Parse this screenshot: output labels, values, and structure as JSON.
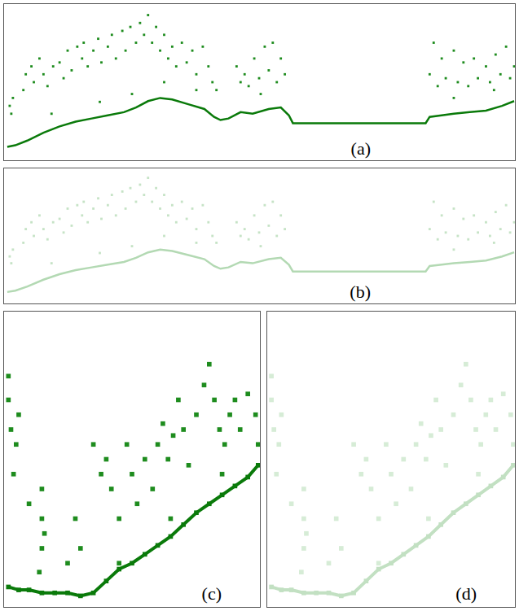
{
  "chart_data": [
    {
      "type": "scatter",
      "title": "(a)",
      "xlim": [
        0,
        637
      ],
      "ylim": [
        0,
        200
      ],
      "tick_labels": false,
      "grid": false,
      "series": [
        {
          "color": "#1e8c1e",
          "marker": "square",
          "line_style": "none",
          "x": [
            8,
            10,
            12,
            25,
            28,
            35,
            38,
            45,
            50,
            55,
            62,
            70,
            75,
            80,
            85,
            92,
            98,
            100,
            105,
            112,
            118,
            122,
            130,
            135,
            140,
            148,
            152,
            158,
            165,
            170,
            175,
            180,
            185,
            190,
            195,
            200,
            205,
            210,
            215,
            222,
            228,
            235,
            240,
            248,
            255,
            260,
            265,
            290,
            295,
            300,
            305,
            312,
            318,
            325,
            330,
            335,
            340,
            345,
            350,
            530,
            535,
            540,
            545,
            550,
            560,
            565,
            572,
            578,
            585,
            590,
            600,
            605,
            612,
            618,
            625,
            630,
            635,
            60,
            120,
            160,
            200,
            240,
            320,
            560,
            610
          ],
          "values": [
            70,
            60,
            80,
            90,
            110,
            120,
            100,
            130,
            110,
            95,
            120,
            125,
            105,
            140,
            115,
            145,
            130,
            150,
            120,
            140,
            155,
            125,
            145,
            160,
            130,
            165,
            140,
            170,
            150,
            175,
            160,
            185,
            150,
            170,
            140,
            160,
            130,
            145,
            120,
            150,
            125,
            140,
            110,
            145,
            120,
            100,
            90,
            120,
            100,
            110,
            95,
            130,
            105,
            145,
            115,
            150,
            100,
            130,
            110,
            110,
            150,
            95,
            130,
            105,
            140,
            100,
            125,
            95,
            130,
            105,
            120,
            100,
            135,
            110,
            145,
            105,
            120,
            60,
            75,
            85,
            100,
            90,
            85,
            80,
            90
          ]
        },
        {
          "color": "#0a7a0a",
          "marker": "none",
          "line_style": "solid",
          "x": [
            5,
            15,
            30,
            50,
            70,
            90,
            110,
            130,
            150,
            165,
            180,
            195,
            210,
            230,
            250,
            262,
            270,
            280,
            295,
            310,
            330,
            345,
            355,
            360,
            400,
            450,
            500,
            525,
            530,
            545,
            560,
            580,
            600,
            620,
            635
          ],
          "values": [
            18,
            20,
            26,
            36,
            44,
            50,
            54,
            58,
            62,
            68,
            76,
            80,
            78,
            72,
            66,
            56,
            52,
            54,
            62,
            60,
            66,
            68,
            58,
            48,
            48,
            48,
            48,
            48,
            56,
            58,
            60,
            62,
            64,
            70,
            76
          ]
        }
      ]
    },
    {
      "type": "scatter",
      "title": "(b)",
      "xlim": [
        0,
        637
      ],
      "ylim": [
        0,
        200
      ],
      "tick_labels": false,
      "grid": false,
      "series": [
        {
          "color": "#c6e3c6",
          "marker": "square",
          "line_style": "none",
          "x": [
            8,
            10,
            12,
            25,
            28,
            35,
            38,
            45,
            50,
            55,
            62,
            70,
            75,
            80,
            85,
            92,
            98,
            100,
            105,
            112,
            118,
            122,
            130,
            135,
            140,
            148,
            152,
            158,
            165,
            170,
            175,
            180,
            185,
            190,
            195,
            200,
            205,
            210,
            215,
            222,
            228,
            235,
            240,
            248,
            255,
            260,
            265,
            290,
            295,
            300,
            305,
            312,
            318,
            325,
            330,
            335,
            340,
            345,
            350,
            530,
            535,
            540,
            545,
            550,
            560,
            565,
            572,
            578,
            585,
            590,
            600,
            605,
            612,
            618,
            625,
            630,
            635,
            60,
            120,
            160,
            200,
            240,
            320,
            560,
            610
          ],
          "values": [
            70,
            60,
            80,
            90,
            110,
            120,
            100,
            130,
            110,
            95,
            120,
            125,
            105,
            140,
            115,
            145,
            130,
            150,
            120,
            140,
            155,
            125,
            145,
            160,
            130,
            165,
            140,
            170,
            150,
            175,
            160,
            185,
            150,
            170,
            140,
            160,
            130,
            145,
            120,
            150,
            125,
            140,
            110,
            145,
            120,
            100,
            90,
            120,
            100,
            110,
            95,
            130,
            105,
            145,
            115,
            150,
            100,
            130,
            110,
            110,
            150,
            95,
            130,
            105,
            140,
            100,
            125,
            95,
            130,
            105,
            120,
            100,
            135,
            110,
            145,
            105,
            120,
            60,
            75,
            85,
            100,
            90,
            85,
            80,
            90
          ]
        },
        {
          "color": "#b3d9b3",
          "marker": "none",
          "line_style": "solid",
          "x": [
            5,
            15,
            30,
            50,
            70,
            90,
            110,
            130,
            150,
            165,
            180,
            195,
            210,
            230,
            250,
            262,
            270,
            280,
            295,
            310,
            330,
            345,
            355,
            360,
            400,
            450,
            500,
            525,
            530,
            545,
            560,
            580,
            600,
            620,
            635
          ],
          "values": [
            18,
            20,
            26,
            36,
            44,
            50,
            54,
            58,
            62,
            68,
            76,
            80,
            78,
            72,
            66,
            56,
            52,
            54,
            62,
            60,
            66,
            68,
            58,
            48,
            48,
            48,
            48,
            48,
            56,
            58,
            60,
            62,
            64,
            70,
            76
          ]
        }
      ]
    },
    {
      "type": "scatter",
      "title": "(c)",
      "xlim": [
        0,
        100
      ],
      "ylim": [
        0,
        100
      ],
      "tick_labels": false,
      "grid": false,
      "series": [
        {
          "color": "#1e8c1e",
          "marker": "square",
          "line_style": "none",
          "x": [
            2,
            2,
            3,
            5,
            4,
            6,
            10,
            15,
            15,
            15,
            16,
            14,
            28,
            30,
            35,
            38,
            40,
            42,
            45,
            48,
            50,
            52,
            55,
            58,
            60,
            62,
            64,
            66,
            68,
            70,
            72,
            75,
            78,
            80,
            82,
            84,
            86,
            88,
            90,
            92,
            95,
            98,
            99,
            25,
            45,
            65,
            85
          ],
          "values": [
            78,
            70,
            60,
            55,
            45,
            65,
            35,
            40,
            30,
            20,
            25,
            12,
            30,
            20,
            55,
            45,
            50,
            40,
            30,
            55,
            45,
            35,
            50,
            40,
            55,
            62,
            50,
            58,
            70,
            60,
            48,
            65,
            75,
            82,
            70,
            60,
            55,
            65,
            70,
            60,
            72,
            65,
            55,
            15,
            15,
            30,
            45
          ]
        },
        {
          "color": "#0a7a0a",
          "marker": "square",
          "line_style": "solid",
          "x": [
            2,
            6,
            10,
            15,
            20,
            25,
            30,
            35,
            40,
            45,
            50,
            55,
            60,
            65,
            70,
            75,
            80,
            85,
            90,
            95,
            99
          ],
          "values": [
            7,
            6,
            6,
            5,
            5,
            5,
            4,
            5,
            9,
            13,
            15,
            18,
            21,
            24,
            28,
            32,
            35,
            38,
            41,
            44,
            48
          ]
        }
      ]
    },
    {
      "type": "scatter",
      "title": "(d)",
      "xlim": [
        0,
        100
      ],
      "ylim": [
        0,
        100
      ],
      "tick_labels": false,
      "grid": false,
      "series": [
        {
          "color": "#d6ecd6",
          "marker": "square",
          "line_style": "none",
          "x": [
            2,
            2,
            3,
            5,
            4,
            6,
            10,
            15,
            15,
            15,
            16,
            14,
            28,
            30,
            35,
            38,
            40,
            42,
            45,
            48,
            50,
            52,
            55,
            58,
            60,
            62,
            64,
            66,
            68,
            70,
            72,
            75,
            78,
            80,
            82,
            84,
            86,
            88,
            90,
            92,
            95,
            98,
            99,
            25,
            45,
            65,
            85
          ],
          "values": [
            78,
            70,
            60,
            55,
            45,
            65,
            35,
            40,
            30,
            20,
            25,
            12,
            30,
            20,
            55,
            45,
            50,
            40,
            30,
            55,
            45,
            35,
            50,
            40,
            55,
            62,
            50,
            58,
            70,
            60,
            48,
            65,
            75,
            82,
            70,
            60,
            55,
            65,
            70,
            60,
            72,
            65,
            55,
            15,
            15,
            30,
            45
          ]
        },
        {
          "color": "#c2e0c2",
          "marker": "square",
          "line_style": "solid",
          "x": [
            2,
            6,
            10,
            15,
            20,
            25,
            30,
            35,
            40,
            45,
            50,
            55,
            60,
            65,
            70,
            75,
            80,
            85,
            90,
            95,
            99
          ],
          "values": [
            7,
            6,
            6,
            5,
            5,
            5,
            4,
            5,
            9,
            13,
            15,
            18,
            21,
            24,
            28,
            32,
            35,
            38,
            41,
            44,
            48
          ]
        }
      ]
    }
  ]
}
